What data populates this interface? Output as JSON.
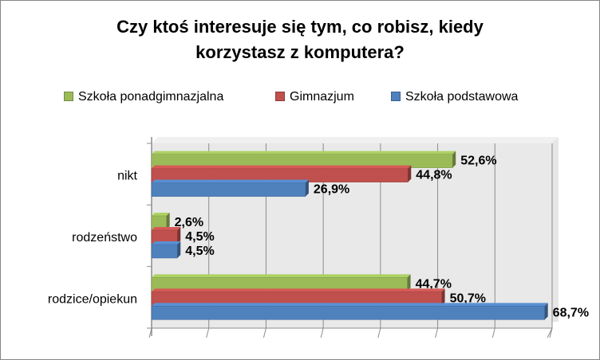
{
  "chart_data": {
    "type": "bar",
    "orientation": "horizontal",
    "title": "Czy ktoś interesuje się tym, co robisz, kiedy korzystasz z komputera?",
    "title_lines": [
      "Czy ktoś interesuje się tym, co robisz, kiedy",
      "korzystasz z komputera?"
    ],
    "categories": [
      "nikt",
      "rodzeństwo",
      "rodzice/opiekun"
    ],
    "series": [
      {
        "name": "Szkoła ponadgimnazjalna",
        "color": "#9BBB59",
        "values": [
          52.6,
          2.6,
          44.7
        ],
        "labels": [
          "52,6%",
          "2,6%",
          "44,7%"
        ]
      },
      {
        "name": "Gimnazjum",
        "color": "#C0504D",
        "values": [
          44.8,
          4.5,
          50.7
        ],
        "labels": [
          "44,8%",
          "4,5%",
          "50,7%"
        ]
      },
      {
        "name": "Szkoła podstawowa",
        "color": "#4F81BD",
        "values": [
          26.9,
          4.5,
          68.7
        ],
        "labels": [
          "26,9%",
          "4,5%",
          "68,7%"
        ]
      }
    ],
    "legend_position": "top",
    "legend_order": [
      0,
      1,
      2
    ],
    "xlim": [
      0,
      70
    ],
    "grid": true,
    "style": "3d-clustered"
  }
}
